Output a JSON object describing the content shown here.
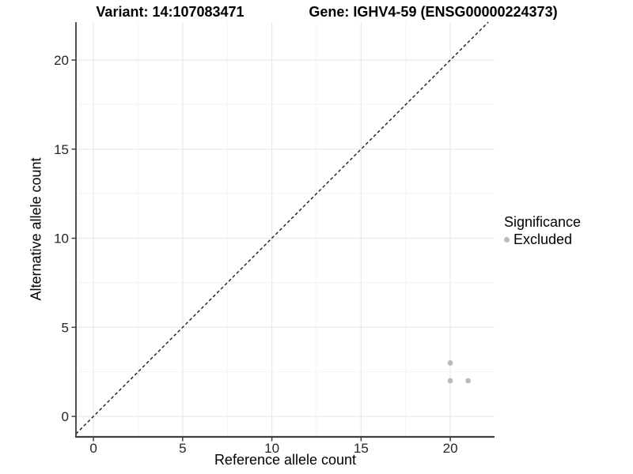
{
  "header": {
    "variant_title": "Variant: 14:107083471",
    "gene_title": "Gene: IGHV4-59 (ENSG00000224373)"
  },
  "chart_data": {
    "type": "scatter",
    "title": "Variant: 14:107083471  /  Gene: IGHV4-59 (ENSG00000224373)",
    "xlabel": "Reference allele count",
    "ylabel": "Alternative allele count",
    "xlim": [
      -0.98,
      22.48
    ],
    "ylim": [
      -1.15,
      22.13
    ],
    "x_ticks": [
      0,
      5,
      10,
      15,
      20
    ],
    "y_ticks": [
      0,
      5,
      10,
      15,
      20
    ],
    "x_minor": [
      2.5,
      7.5,
      12.5,
      17.5
    ],
    "y_minor": [
      2.5,
      7.5,
      12.5,
      17.5
    ],
    "grid": "major+minor",
    "identity_line": {
      "type": "dashed",
      "equation": "y = x"
    },
    "series": [
      {
        "name": "Excluded",
        "color": "#bababa",
        "points": [
          [
            20,
            3
          ],
          [
            20,
            2
          ],
          [
            21,
            2
          ]
        ]
      }
    ],
    "legend": {
      "title": "Significance",
      "position": "right",
      "entries": [
        {
          "label": "Excluded",
          "color": "#bababa"
        }
      ]
    }
  },
  "colors": {
    "background": "#ffffff",
    "grid_major": "#e8e8e8",
    "grid_minor": "#f3f3f3",
    "axis_line": "#3f3f3f",
    "dashed_line": "#1c1c1c",
    "point": "#bababa",
    "tick_text": "#262626"
  }
}
